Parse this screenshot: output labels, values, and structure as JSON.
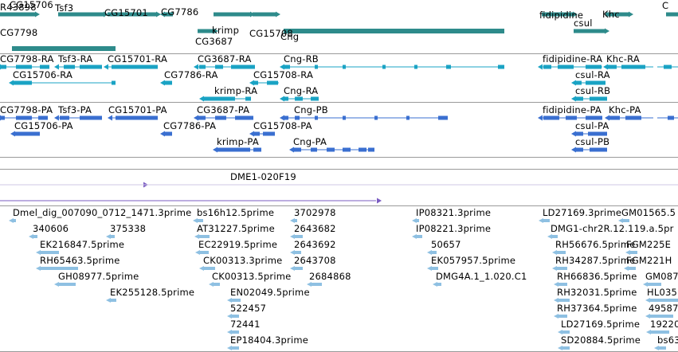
{
  "colors": {
    "gene": "#2e8b8b",
    "transcript": "#1aa3c4",
    "protein": "#3a6fd0",
    "clone": "#7b5cc2",
    "est": "#8ec0e2",
    "separator": "#9a9a9a"
  },
  "tracks": {
    "genes": {
      "labels": [
        "R43898",
        "Tsf3",
        "CG15701",
        "CG7786",
        "krimp",
        "CG15708",
        "fidipidine",
        "Khc",
        "C",
        "CG7798",
        "CG3687",
        "Cng",
        "csul",
        "CG15706"
      ]
    },
    "transcripts": {
      "labels": [
        "CG7798-RA",
        "Tsf3-RA",
        "CG15701-RA",
        "CG3687-RA",
        "Cng-RB",
        "fidipidine-RA",
        "Khc-RA",
        "CG15706-RA",
        "CG7786-RA",
        "CG15708-RA",
        "csul-RA",
        "krimp-RA",
        "Cng-RA",
        "csul-RB"
      ]
    },
    "proteins": {
      "labels": [
        "CG7798-PA",
        "Tsf3-PA",
        "CG15701-PA",
        "CG3687-PA",
        "Cng-PB",
        "fidipidine-PA",
        "Khc-PA",
        "CG15706-PA",
        "CG7786-PA",
        "CG15708-PA",
        "csul-PA",
        "krimp-PA",
        "Cng-PA",
        "csul-PB"
      ]
    },
    "clones": {
      "labels": [
        "DME1-020F19"
      ]
    },
    "ests": {
      "labels": [
        "Dmel_dig_007090_0712_1471.3prime",
        "bs16h12.5prime",
        "3702978",
        "IP08321.3prime",
        "LD27169.3prime",
        "GM01565.5",
        "340606",
        "375338",
        "AT31227.5prime",
        "2643682",
        "IP08221.3prime",
        "DMG1-chr2R.12.119.a.5pr",
        "EK216847.5prime",
        "EC22919.5prime",
        "2643692",
        "50657",
        "RH56676.5prime",
        "FGM225E",
        "RH65463.5prime",
        "CK00313.3prime",
        "2643708",
        "EK057957.5prime",
        "RH34287.5prime",
        "FGM221H",
        "GH08977.5prime",
        "CK00313.5prime",
        "2684868",
        "DMG4A.1_1.020.C1",
        "RH66836.5prime",
        "GM087",
        "EK255128.5prime",
        "EN02049.5prime",
        "RH32031.5prime",
        "HL035",
        "522457",
        "RH37364.5prime",
        "49587",
        "72441",
        "LD27169.5prime",
        "19220",
        "EP18404.3prime",
        "SD20884.5prime",
        "bs63"
      ]
    }
  }
}
